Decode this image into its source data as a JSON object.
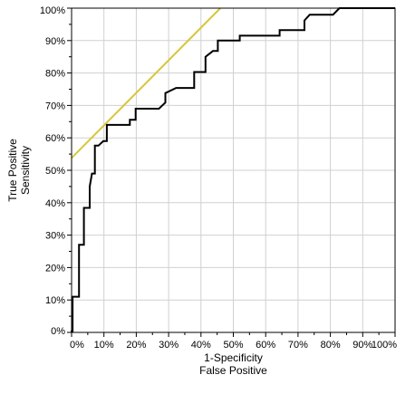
{
  "chart_data": {
    "type": "line",
    "xlabel_lines": [
      "1-Specificity",
      "False Positive"
    ],
    "ylabel_lines": [
      "True Positive",
      "Sensitivity"
    ],
    "xlim": [
      0,
      1
    ],
    "ylim": [
      0,
      1
    ],
    "x_ticks": [
      "0%",
      "10%",
      "20%",
      "30%",
      "40%",
      "50%",
      "60%",
      "70%",
      "80%",
      "90%",
      "100%"
    ],
    "y_ticks": [
      "0%",
      "10%",
      "20%",
      "30%",
      "40%",
      "50%",
      "60%",
      "70%",
      "80%",
      "90%",
      "100%"
    ],
    "grid": true,
    "colors": {
      "roc": "#000000",
      "reference": "#d4c83a",
      "grid": "#d0d0d0",
      "frame": "#000000"
    },
    "series": [
      {
        "x": [
          0,
          0,
          0.003,
          0.003,
          0.023,
          0.023,
          0.038,
          0.038,
          0.056,
          0.056,
          0.063,
          0.072,
          0.072,
          0.083,
          0.098,
          0.109,
          0.109,
          0.12,
          0.18,
          0.18,
          0.198,
          0.198,
          0.27,
          0.29,
          0.29,
          0.323,
          0.379,
          0.379,
          0.414,
          0.414,
          0.437,
          0.452,
          0.452,
          0.52,
          0.52,
          0.643,
          0.643,
          0.72,
          0.72,
          0.736,
          0.736,
          0.808,
          0.828,
          1.0
        ],
        "y": [
          0,
          0.003,
          0.003,
          0.11,
          0.11,
          0.27,
          0.27,
          0.384,
          0.384,
          0.45,
          0.49,
          0.49,
          0.576,
          0.576,
          0.59,
          0.59,
          0.64,
          0.64,
          0.64,
          0.656,
          0.656,
          0.69,
          0.69,
          0.709,
          0.738,
          0.754,
          0.754,
          0.803,
          0.803,
          0.85,
          0.868,
          0.868,
          0.9,
          0.9,
          0.915,
          0.915,
          0.932,
          0.932,
          0.962,
          0.98,
          0.98,
          0.98,
          1.0,
          1.0
        ]
      },
      {
        "x": [
          0,
          0.46
        ],
        "y": [
          0.538,
          1.0
        ]
      }
    ]
  }
}
